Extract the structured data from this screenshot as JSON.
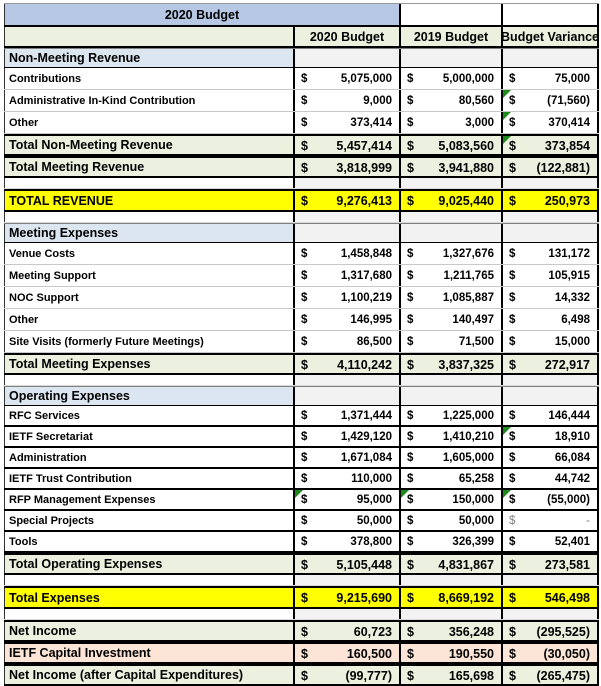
{
  "currency": "$",
  "columns": {
    "label": "",
    "b2020": "2020 Budget",
    "b2019": "2019 Budget",
    "variance": "Budget Variance"
  },
  "colors": {
    "top_header_blue": "#B6C8E4",
    "section_blue": "#DCE6F1",
    "header_total_green": "#EBF1DE",
    "grand_total_yellow": "#FFFF00",
    "capital_peach": "#FCE4D6",
    "blank_cell_gray": "#F2F2F2",
    "error_indicator_green": "#1e8a1e",
    "border_black": "#000000"
  },
  "rows": [
    {
      "kind": "top-header",
      "label": "2020 Budget"
    },
    {
      "kind": "col-header"
    },
    {
      "kind": "section",
      "label": "Non-Meeting Revenue"
    },
    {
      "kind": "data",
      "label": "Contributions",
      "b2020": "5,075,000",
      "b2019": "5,000,000",
      "variance": "75,000"
    },
    {
      "kind": "data",
      "label": "Administrative In-Kind Contribution",
      "b2020": "9,000",
      "b2019": "80,560",
      "variance": "(71,560)",
      "flags": [
        "variance"
      ]
    },
    {
      "kind": "data",
      "label": "Other",
      "b2020": "373,414",
      "b2019": "3,000",
      "variance": "370,414",
      "flags": [
        "variance"
      ]
    },
    {
      "kind": "total",
      "label": "Total Non-Meeting Revenue",
      "b2020": "5,457,414",
      "b2019": "5,083,560",
      "variance": "373,854",
      "flags": [
        "variance"
      ]
    },
    {
      "kind": "total",
      "label": "Total Meeting Revenue",
      "b2020": "3,818,999",
      "b2019": "3,941,880",
      "variance": "(122,881)"
    },
    {
      "kind": "spacer"
    },
    {
      "kind": "grand",
      "label": "TOTAL REVENUE",
      "b2020": "9,276,413",
      "b2019": "9,025,440",
      "variance": "250,973"
    },
    {
      "kind": "spacer"
    },
    {
      "kind": "section",
      "label": "Meeting Expenses"
    },
    {
      "kind": "data",
      "label": "Venue Costs",
      "b2020": "1,458,848",
      "b2019": "1,327,676",
      "variance": "131,172"
    },
    {
      "kind": "data",
      "label": "Meeting Support",
      "b2020": "1,317,680",
      "b2019": "1,211,765",
      "variance": "105,915"
    },
    {
      "kind": "data",
      "label": "NOC Support",
      "b2020": "1,100,219",
      "b2019": "1,085,887",
      "variance": "14,332"
    },
    {
      "kind": "data",
      "label": "Other",
      "b2020": "146,995",
      "b2019": "140,497",
      "variance": "6,498"
    },
    {
      "kind": "data",
      "label": "Site Visits (formerly Future Meetings)",
      "b2020": "86,500",
      "b2019": "71,500",
      "variance": "15,000"
    },
    {
      "kind": "total",
      "label": "Total Meeting Expenses",
      "b2020": "4,110,242",
      "b2019": "3,837,325",
      "variance": "272,917"
    },
    {
      "kind": "spacer"
    },
    {
      "kind": "section",
      "label": "Operating Expenses"
    },
    {
      "kind": "data",
      "boxed": true,
      "label": "RFC Services",
      "b2020": "1,371,444",
      "b2019": "1,225,000",
      "variance": "146,444"
    },
    {
      "kind": "data",
      "boxed": true,
      "label": "IETF Secretariat",
      "b2020": "1,429,120",
      "b2019": "1,410,210",
      "variance": "18,910",
      "flags": [
        "variance"
      ]
    },
    {
      "kind": "data",
      "boxed": true,
      "label": "Administration",
      "b2020": "1,671,084",
      "b2019": "1,605,000",
      "variance": "66,084"
    },
    {
      "kind": "data",
      "boxed": true,
      "label": "IETF Trust Contribution",
      "b2020": "110,000",
      "b2019": "65,258",
      "variance": "44,742"
    },
    {
      "kind": "data",
      "boxed": true,
      "label": "RFP Management Expenses",
      "b2020": "95,000",
      "b2019": "150,000",
      "variance": "(55,000)",
      "flags": [
        "b2020",
        "b2019",
        "variance"
      ]
    },
    {
      "kind": "data",
      "boxed": true,
      "label": "Special Projects",
      "b2020": "50,000",
      "b2019": "50,000",
      "variance": "-",
      "muted": [
        "variance"
      ]
    },
    {
      "kind": "data",
      "boxed": true,
      "label": "Tools",
      "b2020": "378,800",
      "b2019": "326,399",
      "variance": "52,401"
    },
    {
      "kind": "total",
      "label": "Total Operating Expenses",
      "b2020": "5,105,448",
      "b2019": "4,831,867",
      "variance": "273,581"
    },
    {
      "kind": "spacer"
    },
    {
      "kind": "grand",
      "label": "Total Expenses",
      "b2020": "9,215,690",
      "b2019": "8,669,192",
      "variance": "546,498"
    },
    {
      "kind": "spacer"
    },
    {
      "kind": "total",
      "label": "Net Income",
      "b2020": "60,723",
      "b2019": "356,248",
      "variance": "(295,525)"
    },
    {
      "kind": "capital",
      "label": "IETF Capital Investment",
      "b2020": "160,500",
      "b2019": "190,550",
      "variance": "(30,050)"
    },
    {
      "kind": "total",
      "label": "Net Income (after Capital Expenditures)",
      "b2020": "(99,777)",
      "b2019": "165,698",
      "variance": "(265,475)"
    }
  ]
}
